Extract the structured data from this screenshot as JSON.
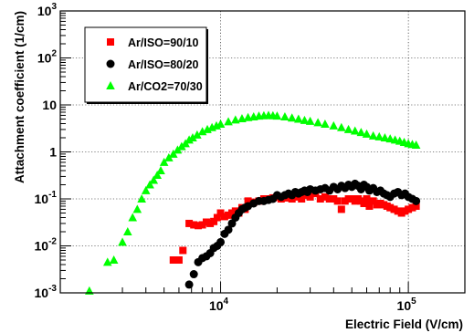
{
  "chart_data": {
    "type": "scatter",
    "title": "",
    "xlabel": "Electric Field (V/cm)",
    "ylabel": "Attachment coefficient (1/cm)",
    "xscale": "log",
    "yscale": "log",
    "xlim": [
      1400,
      200000
    ],
    "ylim": [
      0.001,
      1000
    ],
    "grid": true,
    "legend": "top-left",
    "x_ticks": [
      {
        "value": 10000,
        "base": "10",
        "exp": "4"
      },
      {
        "value": 100000,
        "base": "10",
        "exp": "5"
      }
    ],
    "y_ticks": [
      {
        "value": 0.001,
        "base": "10",
        "exp": "-3"
      },
      {
        "value": 0.01,
        "base": "10",
        "exp": "-2"
      },
      {
        "value": 0.1,
        "base": "10",
        "exp": "-1"
      },
      {
        "value": 1,
        "text": "1"
      },
      {
        "value": 10,
        "text": "10"
      },
      {
        "value": 100,
        "base": "10",
        "exp": "2"
      },
      {
        "value": 1000,
        "base": "10",
        "exp": "3"
      }
    ],
    "series": [
      {
        "name": "Ar/ISO=90/10",
        "marker": "square",
        "color": "#ff0000",
        "x": [
          5600,
          6000,
          6300,
          6800,
          7200,
          7600,
          8000,
          8400,
          8800,
          9200,
          9600,
          10000,
          10500,
          11000,
          11500,
          12000,
          12500,
          13000,
          13500,
          14000,
          15000,
          16000,
          17000,
          18000,
          19000,
          20000,
          21000,
          22000,
          23000,
          24000,
          25000,
          26000,
          27000,
          28000,
          29000,
          30000,
          32000,
          34000,
          36000,
          38000,
          40000,
          42000,
          44000,
          46000,
          48000,
          50000,
          52000,
          54000,
          56000,
          58000,
          60000,
          62000,
          65000,
          68000,
          71000,
          74000,
          77000,
          80000,
          84000,
          88000,
          92000,
          96000,
          100000,
          105000,
          110000
        ],
        "y": [
          0.005,
          0.005,
          0.008,
          0.03,
          0.028,
          0.027,
          0.028,
          0.032,
          0.03,
          0.033,
          0.04,
          0.05,
          0.042,
          0.045,
          0.05,
          0.055,
          0.05,
          0.065,
          0.06,
          0.09,
          0.085,
          0.09,
          0.1,
          0.1,
          0.105,
          0.11,
          0.1,
          0.105,
          0.11,
          0.1,
          0.12,
          0.11,
          0.1,
          0.13,
          0.12,
          0.11,
          0.13,
          0.1,
          0.11,
          0.1,
          0.1,
          0.09,
          0.06,
          0.09,
          0.1,
          0.1,
          0.09,
          0.1,
          0.09,
          0.08,
          0.1,
          0.07,
          0.09,
          0.075,
          0.08,
          0.075,
          0.07,
          0.065,
          0.06,
          0.055,
          0.05,
          0.055,
          0.06,
          0.065,
          0.07
        ]
      },
      {
        "name": "Ar/ISO=80/20",
        "marker": "circle",
        "color": "#000000",
        "x": [
          6300,
          6800,
          7200,
          7600,
          8000,
          8400,
          8800,
          9200,
          9600,
          10000,
          10500,
          11000,
          11500,
          12000,
          12500,
          13000,
          13500,
          14000,
          15000,
          16000,
          17000,
          18000,
          19000,
          20000,
          21000,
          22000,
          23000,
          24000,
          25000,
          26000,
          27000,
          28000,
          29000,
          30000,
          32000,
          34000,
          36000,
          38000,
          40000,
          42000,
          44000,
          46000,
          48000,
          50000,
          52000,
          54000,
          56000,
          58000,
          60000,
          62000,
          65000,
          68000,
          71000,
          74000,
          77000,
          80000,
          84000,
          88000,
          92000,
          96000,
          100000,
          105000,
          110000
        ],
        "y": [
          0.0008,
          0.0015,
          0.0025,
          0.0045,
          0.0055,
          0.006,
          0.007,
          0.009,
          0.01,
          0.012,
          0.018,
          0.022,
          0.03,
          0.04,
          0.05,
          0.06,
          0.065,
          0.07,
          0.08,
          0.09,
          0.09,
          0.095,
          0.1,
          0.12,
          0.11,
          0.12,
          0.13,
          0.12,
          0.14,
          0.13,
          0.14,
          0.15,
          0.14,
          0.16,
          0.15,
          0.16,
          0.17,
          0.15,
          0.18,
          0.16,
          0.19,
          0.17,
          0.2,
          0.18,
          0.21,
          0.19,
          0.16,
          0.2,
          0.18,
          0.15,
          0.17,
          0.14,
          0.15,
          0.13,
          0.12,
          0.11,
          0.13,
          0.14,
          0.12,
          0.13,
          0.11,
          0.1,
          0.09
        ]
      },
      {
        "name": "Ar/CO2=70/30",
        "marker": "triangle",
        "color": "#00ff00",
        "x": [
          2000,
          2500,
          2700,
          3000,
          3200,
          3400,
          3600,
          3800,
          4000,
          4200,
          4400,
          4600,
          4800,
          5000,
          5300,
          5600,
          5900,
          6200,
          6500,
          6800,
          7100,
          7500,
          8000,
          8500,
          9000,
          9500,
          10000,
          11000,
          12000,
          13000,
          14000,
          15000,
          16000,
          17000,
          18000,
          19000,
          20000,
          22000,
          24000,
          26000,
          28000,
          30000,
          33000,
          36000,
          40000,
          44000,
          48000,
          52000,
          56000,
          60000,
          65000,
          70000,
          75000,
          80000,
          85000,
          90000,
          95000,
          100000,
          105000,
          110000
        ],
        "y": [
          0.0011,
          0.0045,
          0.005,
          0.012,
          0.02,
          0.04,
          0.06,
          0.1,
          0.15,
          0.2,
          0.25,
          0.32,
          0.4,
          0.6,
          0.75,
          0.9,
          1.1,
          1.3,
          1.5,
          1.8,
          2.0,
          2.3,
          2.7,
          3.0,
          3.3,
          3.6,
          3.9,
          4.4,
          4.8,
          5.1,
          5.4,
          5.6,
          5.8,
          5.9,
          6.0,
          5.9,
          5.8,
          5.6,
          5.3,
          5.0,
          4.7,
          4.5,
          4.2,
          3.9,
          3.6,
          3.3,
          3.0,
          2.8,
          2.6,
          2.4,
          2.2,
          2.1,
          2.0,
          1.9,
          1.8,
          1.7,
          1.6,
          1.5,
          1.45,
          1.4
        ]
      }
    ]
  }
}
